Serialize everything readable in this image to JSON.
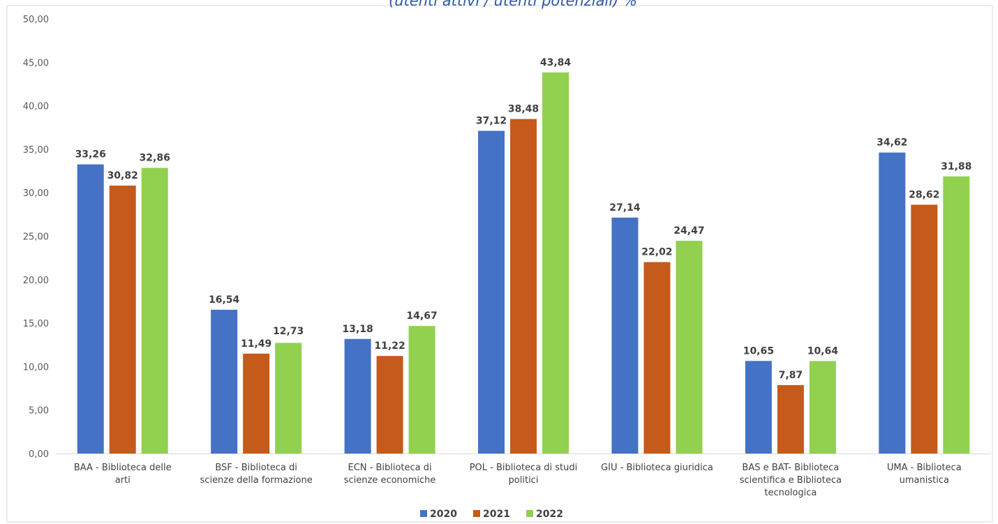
{
  "chart_data": {
    "type": "bar",
    "title": "(utenti attivi / utenti potenziali) %",
    "categories": [
      [
        "BAA - Biblioteca delle",
        "arti"
      ],
      [
        "BSF - Biblioteca di",
        "scienze della formazione"
      ],
      [
        "ECN - Biblioteca di",
        "scienze economiche"
      ],
      [
        "POL - Biblioteca di studi",
        "politici"
      ],
      [
        "GIU - Biblioteca giuridica"
      ],
      [
        "BAS e BAT- Biblioteca",
        "scientifica e Biblioteca",
        "tecnologica"
      ],
      [
        "UMA - Biblioteca",
        "umanistica"
      ]
    ],
    "series": [
      {
        "name": "2020",
        "color": "#4472c4",
        "values": [
          33.26,
          16.54,
          13.18,
          37.12,
          27.14,
          10.65,
          34.62
        ],
        "labels": [
          "33,26",
          "16,54",
          "13,18",
          "37,12",
          "27,14",
          "10,65",
          "34,62"
        ]
      },
      {
        "name": "2021",
        "color": "#c55a1b",
        "values": [
          30.82,
          11.49,
          11.22,
          38.48,
          22.02,
          7.87,
          28.62
        ],
        "labels": [
          "30,82",
          "11,49",
          "11,22",
          "38,48",
          "22,02",
          "7,87",
          "28,62"
        ]
      },
      {
        "name": "2022",
        "color": "#92d050",
        "values": [
          32.86,
          12.73,
          14.67,
          43.84,
          24.47,
          10.64,
          31.88
        ],
        "labels": [
          "32,86",
          "12,73",
          "14,67",
          "43,84",
          "24,47",
          "10,64",
          "31,88"
        ]
      }
    ],
    "ylim": [
      0,
      50
    ],
    "yticks": [
      "0,00",
      "5,00",
      "10,00",
      "15,00",
      "20,00",
      "25,00",
      "30,00",
      "35,00",
      "40,00",
      "45,00",
      "50,00"
    ],
    "grid": false,
    "legend_position": "bottom-center"
  }
}
